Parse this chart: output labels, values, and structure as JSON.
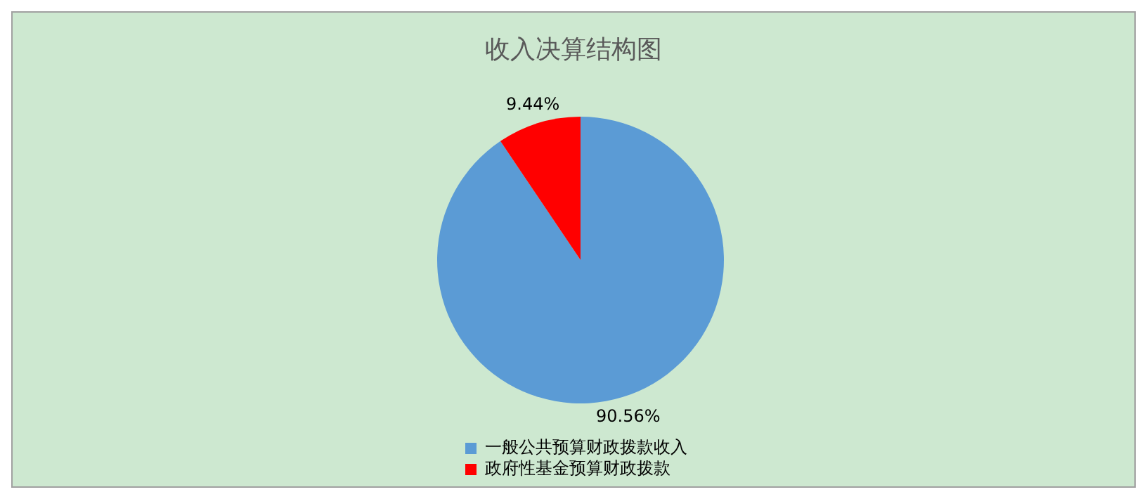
{
  "chart_data": {
    "type": "pie",
    "title": "收入决算结构图",
    "categories": [
      "一般公共预算财政拨款收入",
      "政府性基金预算财政拨款"
    ],
    "values": [
      90.56,
      9.44
    ],
    "value_labels": [
      "90.56%",
      "9.44%"
    ],
    "colors": [
      "#5b9bd5",
      "#ff0000"
    ],
    "legend": "bottom"
  }
}
